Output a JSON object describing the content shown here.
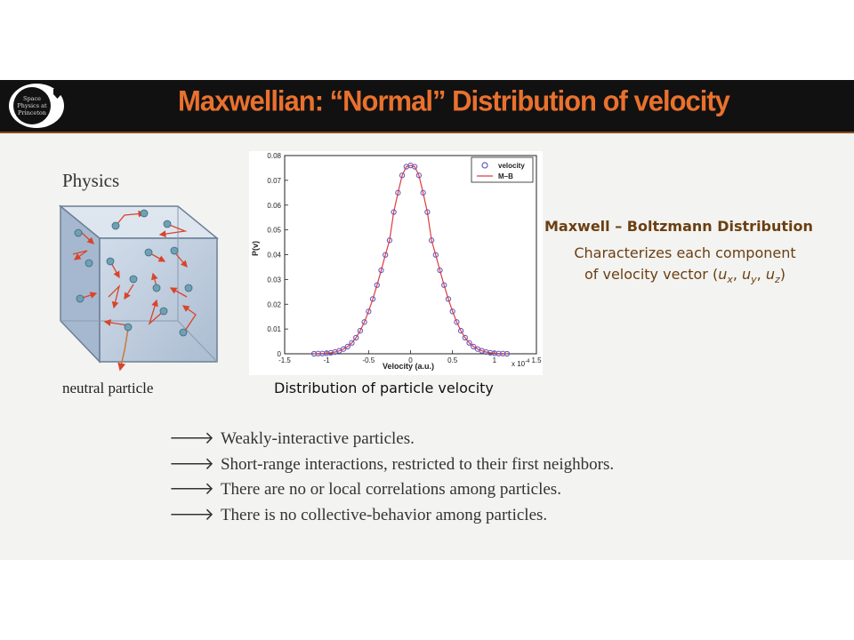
{
  "header": {
    "title": "Maxwellian: “Normal” Distribution of velocity",
    "logo_text": [
      "Space",
      "Physics at",
      "Princeton"
    ]
  },
  "left_panel": {
    "physics_label": "Physics",
    "neutral_label": "neutral particle"
  },
  "plot": {
    "caption": "Distribution of particle velocity",
    "x_exponent_label": "x 10",
    "x_exponent_power": "-4"
  },
  "right_panel": {
    "title": "Maxwell – Boltzmann Distribution",
    "desc_line1": "Characterizes each component",
    "desc_line2_prefix": "of velocity vector (",
    "u_x": "u",
    "u_x_sub": "x",
    "u_y": "u",
    "u_y_sub": "y",
    "u_z": "u",
    "u_z_sub": "z",
    "desc_line2_suffix": ")"
  },
  "bullets": {
    "arrow": "🡒",
    "items": [
      "Weakly-interactive particles.",
      "Short-range interactions, restricted to their first neighbors.",
      "There are no or local correlations among particles.",
      "There is no collective-behavior among particles."
    ]
  },
  "colors": {
    "title_orange": "#e9712e",
    "header_bg": "#111111",
    "mb_brown": "#6b3f12",
    "marker_purple": "#6a57b8",
    "curve_red": "#e23b3b"
  },
  "chart_data": {
    "type": "line",
    "xlabel": "Velocity (a.u.)",
    "ylabel": "P(v)",
    "xlim": [
      -1.5,
      1.5
    ],
    "ylim": [
      0,
      0.08
    ],
    "x_ticks": [
      "-1.5",
      "-1",
      "-0.5",
      "0",
      "0.5",
      "1",
      "1.5"
    ],
    "y_ticks": [
      "0",
      "0.01",
      "0.02",
      "0.03",
      "0.04",
      "0.05",
      "0.06",
      "0.07",
      "0.08"
    ],
    "x_tick_values": [
      -1.5,
      -1,
      -0.5,
      0,
      0.5,
      1,
      1.5
    ],
    "y_tick_values": [
      0,
      0.01,
      0.02,
      0.03,
      0.04,
      0.05,
      0.06,
      0.07,
      0.08
    ],
    "legend_position": "top-right",
    "series": [
      {
        "name": "velocity",
        "style": "markers",
        "x": [
          -1.15,
          -1.1,
          -1.05,
          -1.0,
          -0.95,
          -0.9,
          -0.85,
          -0.8,
          -0.75,
          -0.7,
          -0.65,
          -0.6,
          -0.55,
          -0.5,
          -0.45,
          -0.4,
          -0.35,
          -0.3,
          -0.25,
          -0.2,
          -0.15,
          -0.1,
          -0.05,
          0.0,
          0.05,
          0.1,
          0.15,
          0.2,
          0.25,
          0.3,
          0.35,
          0.4,
          0.45,
          0.5,
          0.55,
          0.6,
          0.65,
          0.7,
          0.75,
          0.8,
          0.85,
          0.9,
          0.95,
          1.0,
          1.05,
          1.1,
          1.15
        ],
        "y": [
          0.0,
          0.0001,
          0.0001,
          0.0002,
          0.0004,
          0.0007,
          0.0012,
          0.0019,
          0.0029,
          0.0044,
          0.0065,
          0.0093,
          0.0128,
          0.0171,
          0.0221,
          0.0277,
          0.0337,
          0.0399,
          0.0458,
          0.0572,
          0.065,
          0.072,
          0.0755,
          0.076,
          0.0755,
          0.072,
          0.065,
          0.0572,
          0.0458,
          0.0399,
          0.0337,
          0.0277,
          0.0221,
          0.0171,
          0.0128,
          0.0093,
          0.0065,
          0.0044,
          0.0029,
          0.0019,
          0.0012,
          0.0007,
          0.0004,
          0.0002,
          0.0001,
          0.0001,
          0.0
        ]
      },
      {
        "name": "M–B",
        "style": "line",
        "x": [
          -1.15,
          -1.1,
          -1.05,
          -1.0,
          -0.95,
          -0.9,
          -0.85,
          -0.8,
          -0.75,
          -0.7,
          -0.65,
          -0.6,
          -0.55,
          -0.5,
          -0.45,
          -0.4,
          -0.35,
          -0.3,
          -0.25,
          -0.2,
          -0.15,
          -0.1,
          -0.05,
          0.0,
          0.05,
          0.1,
          0.15,
          0.2,
          0.25,
          0.3,
          0.35,
          0.4,
          0.45,
          0.5,
          0.55,
          0.6,
          0.65,
          0.7,
          0.75,
          0.8,
          0.85,
          0.9,
          0.95,
          1.0,
          1.05,
          1.1,
          1.15
        ],
        "y": [
          0.0,
          0.0001,
          0.0001,
          0.0002,
          0.0004,
          0.0007,
          0.0012,
          0.0019,
          0.0029,
          0.0044,
          0.0065,
          0.0093,
          0.0128,
          0.0171,
          0.0221,
          0.0277,
          0.0337,
          0.0399,
          0.0458,
          0.0572,
          0.065,
          0.072,
          0.0755,
          0.076,
          0.0755,
          0.072,
          0.065,
          0.0572,
          0.0458,
          0.0399,
          0.0337,
          0.0277,
          0.0221,
          0.0171,
          0.0128,
          0.0093,
          0.0065,
          0.0044,
          0.0029,
          0.0019,
          0.0012,
          0.0007,
          0.0004,
          0.0002,
          0.0001,
          0.0001,
          0.0
        ]
      }
    ]
  }
}
